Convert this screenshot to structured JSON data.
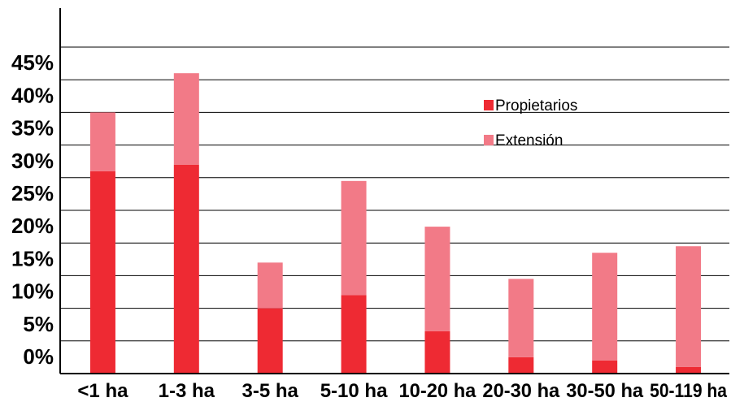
{
  "chart_data": {
    "type": "bar",
    "stacked": true,
    "categories": [
      "<1 ha",
      "1-3 ha",
      "3-5 ha",
      "5-10 ha",
      "10-20 ha",
      "20-30 ha",
      "30-50 ha",
      "50-119 ha"
    ],
    "series": [
      {
        "name": "Propietarios",
        "color": "#ee2a33",
        "values": [
          31,
          32,
          10,
          12,
          6.5,
          2.5,
          2,
          1
        ]
      },
      {
        "name": "Extensión",
        "color": "#f27a87",
        "values": [
          9,
          14,
          7,
          17.5,
          16,
          12,
          16.5,
          18.5
        ]
      }
    ],
    "y_ticks": [
      "0%",
      "5%",
      "10%",
      "15%",
      "20%",
      "25%",
      "30%",
      "35%",
      "40%",
      "45%"
    ],
    "ylim": [
      0,
      50
    ],
    "grid": true,
    "legend_position": "right, inside plot"
  }
}
